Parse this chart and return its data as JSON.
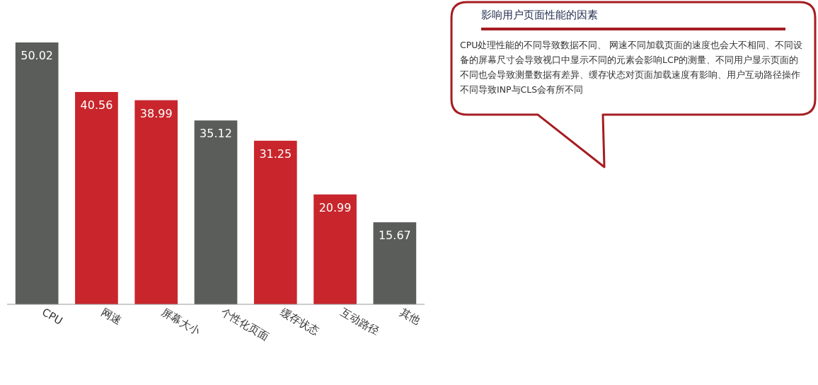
{
  "chart_data": {
    "type": "bar",
    "title": "影响用户页面性能的因素",
    "categories": [
      "CPU",
      "网速",
      "屏幕大小",
      "个性化页面",
      "缓存状态",
      "互动路径",
      "其他"
    ],
    "values": [
      50.02,
      40.56,
      38.99,
      35.12,
      31.25,
      20.99,
      15.67
    ],
    "colors": [
      "#5b5d5a",
      "#c8262c",
      "#c8262c",
      "#5b5d5a",
      "#c8262c",
      "#c8262c",
      "#5b5d5a"
    ],
    "data_labels": true,
    "annotations": [
      "CPU处理性能的不同导致数据不同、 网速不同加载页面的速度也会大不相同、不同设备的屏幕尺寸会导致视口中显示不同的元素会影响LCP的测量、不同用户显示页面的不同也会导致测量数据有差异、缓存状态对页面加载速度有影响、用户互动路径操作不同导致INP与CLS会有所不同"
    ]
  }
}
